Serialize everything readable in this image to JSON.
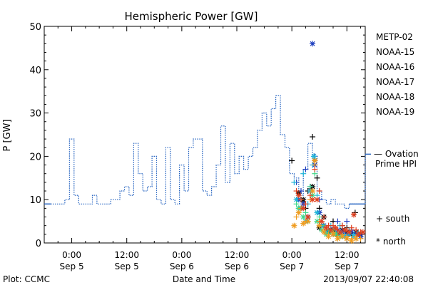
{
  "chart_data": {
    "type": "line",
    "title": "Hemispheric Power [GW]",
    "xlabel": "Date and Time",
    "ylabel": "P [GW]",
    "x_unit": "hours since Sep 5 00:00",
    "xlim": [
      -6,
      64
    ],
    "ylim": [
      0,
      50
    ],
    "yticks": [
      0,
      10,
      20,
      30,
      40,
      50
    ],
    "x_ticks": [
      {
        "x": 0,
        "time": "0:00",
        "date": "Sep 5"
      },
      {
        "x": 12,
        "time": "12:00",
        "date": "Sep 5"
      },
      {
        "x": 24,
        "time": "0:00",
        "date": "Sep 6"
      },
      {
        "x": 36,
        "time": "12:00",
        "date": "Sep 6"
      },
      {
        "x": 48,
        "time": "0:00",
        "date": "Sep 7"
      },
      {
        "x": 60,
        "time": "12:00",
        "date": "Sep 7"
      }
    ],
    "footer_left": "Plot: CCMC",
    "footer_right": "2013/09/07 22:40:08",
    "legend": [
      {
        "name": "METP-02",
        "color": "#000000"
      },
      {
        "name": "NOAA-15",
        "color": "#1f3fbf"
      },
      {
        "name": "NOAA-16",
        "color": "#1fb4d8"
      },
      {
        "name": "NOAA-17",
        "color": "#3fd88a"
      },
      {
        "name": "NOAA-18",
        "color": "#ef9a1c"
      },
      {
        "name": "NOAA-19",
        "color": "#e0401f"
      }
    ],
    "ovation": {
      "label_line1": "— Ovation",
      "label_line2": "Prime HPI",
      "color": "#1f5fbf",
      "steps": [
        [
          -6,
          9
        ],
        [
          -4.5,
          9
        ],
        [
          -1.5,
          10
        ],
        [
          -0.5,
          24
        ],
        [
          0.5,
          11
        ],
        [
          1.5,
          9
        ],
        [
          4.5,
          11
        ],
        [
          5.5,
          9
        ],
        [
          8.5,
          10
        ],
        [
          10.5,
          12
        ],
        [
          11.5,
          13
        ],
        [
          12.5,
          11
        ],
        [
          13.5,
          23
        ],
        [
          14.5,
          16
        ],
        [
          15.5,
          12
        ],
        [
          16.5,
          13
        ],
        [
          17.5,
          20
        ],
        [
          18.5,
          10
        ],
        [
          19.5,
          9
        ],
        [
          20.5,
          22
        ],
        [
          21.5,
          10
        ],
        [
          22.5,
          9
        ],
        [
          23.5,
          18
        ],
        [
          24.5,
          12
        ],
        [
          25.5,
          22
        ],
        [
          26.5,
          24
        ],
        [
          28.5,
          12
        ],
        [
          29.5,
          11
        ],
        [
          30.5,
          13
        ],
        [
          31.5,
          18
        ],
        [
          32.5,
          27
        ],
        [
          33.5,
          14
        ],
        [
          34.5,
          23
        ],
        [
          35.5,
          16
        ],
        [
          36.5,
          20
        ],
        [
          37.5,
          17
        ],
        [
          38.5,
          20
        ],
        [
          39.5,
          22
        ],
        [
          40.5,
          26
        ],
        [
          41.5,
          30
        ],
        [
          42.5,
          27
        ],
        [
          43.5,
          31
        ],
        [
          44.5,
          34
        ],
        [
          45.5,
          25
        ],
        [
          46.5,
          22
        ],
        [
          47.5,
          16
        ],
        [
          48.5,
          15
        ],
        [
          49.5,
          11
        ],
        [
          50.5,
          17
        ],
        [
          51.5,
          23
        ],
        [
          52.5,
          20
        ],
        [
          53.5,
          12
        ],
        [
          54.5,
          10
        ],
        [
          55.5,
          9
        ],
        [
          56.5,
          10
        ],
        [
          57.5,
          9
        ],
        [
          59.5,
          8
        ],
        [
          60.5,
          9
        ],
        [
          63.5,
          9
        ],
        [
          64,
          9
        ]
      ],
      "spike_x": 64,
      "spike_to": 20.5
    },
    "series": [
      {
        "name": "METP-02",
        "color": "#000000",
        "points": {
          "south": [
            [
              48,
              19
            ],
            [
              49.5,
              11.5
            ],
            [
              50.5,
              9.5
            ],
            [
              51,
              8
            ],
            [
              51.5,
              12
            ],
            [
              52,
              12.5
            ],
            [
              52.5,
              24.5
            ],
            [
              53.5,
              15
            ],
            [
              54,
              8
            ],
            [
              55,
              6
            ],
            [
              56,
              3
            ],
            [
              57,
              5
            ],
            [
              58,
              3
            ],
            [
              59,
              4
            ],
            [
              60,
              3.5
            ],
            [
              61,
              2.5
            ],
            [
              61.8,
              7
            ],
            [
              62.5,
              2
            ],
            [
              63,
              2.5
            ],
            [
              57.5,
              3
            ]
          ],
          "north": [
            [
              49.5,
              11.5
            ],
            [
              50.5,
              10
            ],
            [
              51.5,
              6
            ],
            [
              52.5,
              13
            ],
            [
              53,
              19
            ],
            [
              54,
              3.5
            ],
            [
              55,
              6
            ],
            [
              56,
              2.5
            ],
            [
              57,
              3
            ],
            [
              58,
              2
            ],
            [
              59,
              3
            ],
            [
              60,
              2.5
            ],
            [
              61,
              2
            ],
            [
              62,
              2.5
            ],
            [
              63,
              2
            ]
          ]
        }
      },
      {
        "name": "NOAA-15",
        "color": "#1f3fbf",
        "points": {
          "south": [
            [
              49,
              14
            ],
            [
              50,
              12
            ],
            [
              51,
              17
            ],
            [
              52,
              13
            ],
            [
              53,
              20
            ],
            [
              54,
              10
            ],
            [
              55,
              6
            ],
            [
              56,
              4
            ],
            [
              57,
              3.5
            ],
            [
              58,
              5
            ],
            [
              59,
              3
            ],
            [
              60,
              5
            ],
            [
              61,
              3
            ],
            [
              62,
              2.5
            ],
            [
              63,
              2
            ]
          ],
          "north": [
            [
              49.5,
              10
            ],
            [
              50.5,
              9
            ],
            [
              51.5,
              6
            ],
            [
              52.5,
              46
            ],
            [
              53,
              18
            ],
            [
              54,
              7
            ],
            [
              55,
              4
            ],
            [
              56,
              3
            ],
            [
              57,
              2
            ],
            [
              58,
              3
            ],
            [
              59,
              2.5
            ],
            [
              60,
              2
            ],
            [
              61,
              2.5
            ],
            [
              62,
              2
            ],
            [
              63,
              1.5
            ]
          ]
        }
      },
      {
        "name": "NOAA-16",
        "color": "#1fb4d8",
        "points": {
          "south": [
            [
              48.5,
              14
            ],
            [
              49.5,
              8
            ],
            [
              50.5,
              16
            ],
            [
              51.5,
              9
            ],
            [
              52.5,
              18
            ],
            [
              53.5,
              11
            ],
            [
              54.5,
              5
            ],
            [
              55.5,
              3
            ],
            [
              56.5,
              4
            ],
            [
              57.5,
              2.5
            ],
            [
              58.5,
              4
            ],
            [
              59.5,
              2
            ],
            [
              60.5,
              3
            ],
            [
              61.5,
              2
            ],
            [
              62.5,
              2.5
            ]
          ],
          "north": [
            [
              49,
              10
            ],
            [
              50,
              8
            ],
            [
              51,
              5
            ],
            [
              52,
              12
            ],
            [
              52.8,
              20
            ],
            [
              53.5,
              7
            ],
            [
              54.5,
              4
            ],
            [
              55.5,
              2.5
            ],
            [
              56.5,
              3
            ],
            [
              57.5,
              2
            ],
            [
              58.5,
              2.5
            ],
            [
              59.5,
              1.5
            ],
            [
              60.5,
              2
            ],
            [
              61.5,
              1.5
            ],
            [
              62.5,
              2
            ]
          ]
        }
      },
      {
        "name": "NOAA-17",
        "color": "#3fd88a",
        "points": {
          "south": [
            [
              49,
              9
            ],
            [
              50,
              10
            ],
            [
              51,
              7
            ],
            [
              52,
              13
            ],
            [
              53,
              16
            ],
            [
              54,
              6
            ],
            [
              55,
              4
            ],
            [
              56,
              3
            ],
            [
              57,
              3
            ],
            [
              58,
              2.5
            ]
          ],
          "north": [
            [
              49.5,
              8
            ],
            [
              50.5,
              6
            ],
            [
              51.5,
              5
            ],
            [
              52.5,
              11
            ],
            [
              53.5,
              5
            ],
            [
              54.5,
              3
            ],
            [
              55.5,
              2
            ],
            [
              56.5,
              2.5
            ],
            [
              57.5,
              2
            ],
            [
              58.5,
              1.5
            ]
          ]
        }
      },
      {
        "name": "NOAA-18",
        "color": "#ef9a1c",
        "points": {
          "south": [
            [
              49,
              6
            ],
            [
              50,
              8
            ],
            [
              51,
              5
            ],
            [
              52,
              10
            ],
            [
              53,
              18
            ],
            [
              54,
              5
            ],
            [
              55,
              3
            ],
            [
              56,
              2
            ],
            [
              57,
              2.5
            ],
            [
              58,
              1.5
            ],
            [
              59,
              2
            ],
            [
              60,
              1.5
            ],
            [
              61,
              1
            ],
            [
              62,
              1.5
            ],
            [
              63,
              1
            ]
          ],
          "north": [
            [
              48.5,
              4
            ],
            [
              49.5,
              7
            ],
            [
              50.5,
              4.5
            ],
            [
              51.5,
              5
            ],
            [
              52.5,
              12
            ],
            [
              53,
              19
            ],
            [
              54,
              4
            ],
            [
              55,
              2.5
            ],
            [
              56,
              1.5
            ],
            [
              57,
              2
            ],
            [
              58,
              1
            ],
            [
              59,
              1.5
            ],
            [
              60,
              1
            ],
            [
              61,
              0.5
            ],
            [
              62,
              1
            ]
          ]
        }
      },
      {
        "name": "NOAA-19",
        "color": "#e0401f",
        "points": {
          "south": [
            [
              49,
              12
            ],
            [
              50,
              10
            ],
            [
              51,
              9
            ],
            [
              52,
              11
            ],
            [
              53,
              17
            ],
            [
              54,
              12
            ],
            [
              55,
              6
            ],
            [
              56,
              4
            ],
            [
              57,
              4
            ],
            [
              58,
              3
            ],
            [
              59,
              4
            ],
            [
              60,
              3
            ],
            [
              61,
              3.5
            ],
            [
              62,
              3
            ],
            [
              63,
              2.5
            ]
          ],
          "north": [
            [
              49.5,
              11
            ],
            [
              50.5,
              8
            ],
            [
              51.5,
              6
            ],
            [
              52.5,
              10
            ],
            [
              53.5,
              10
            ],
            [
              54.5,
              5
            ],
            [
              55.5,
              3.5
            ],
            [
              56.5,
              3
            ],
            [
              57.5,
              3.5
            ],
            [
              58.5,
              2.5
            ],
            [
              59.5,
              3
            ],
            [
              60.5,
              2.5
            ],
            [
              61.5,
              6.5
            ],
            [
              62.5,
              2
            ],
            [
              63.5,
              2.5
            ]
          ]
        }
      }
    ],
    "markers_legend": {
      "south": "+ south",
      "north": "* north"
    }
  }
}
